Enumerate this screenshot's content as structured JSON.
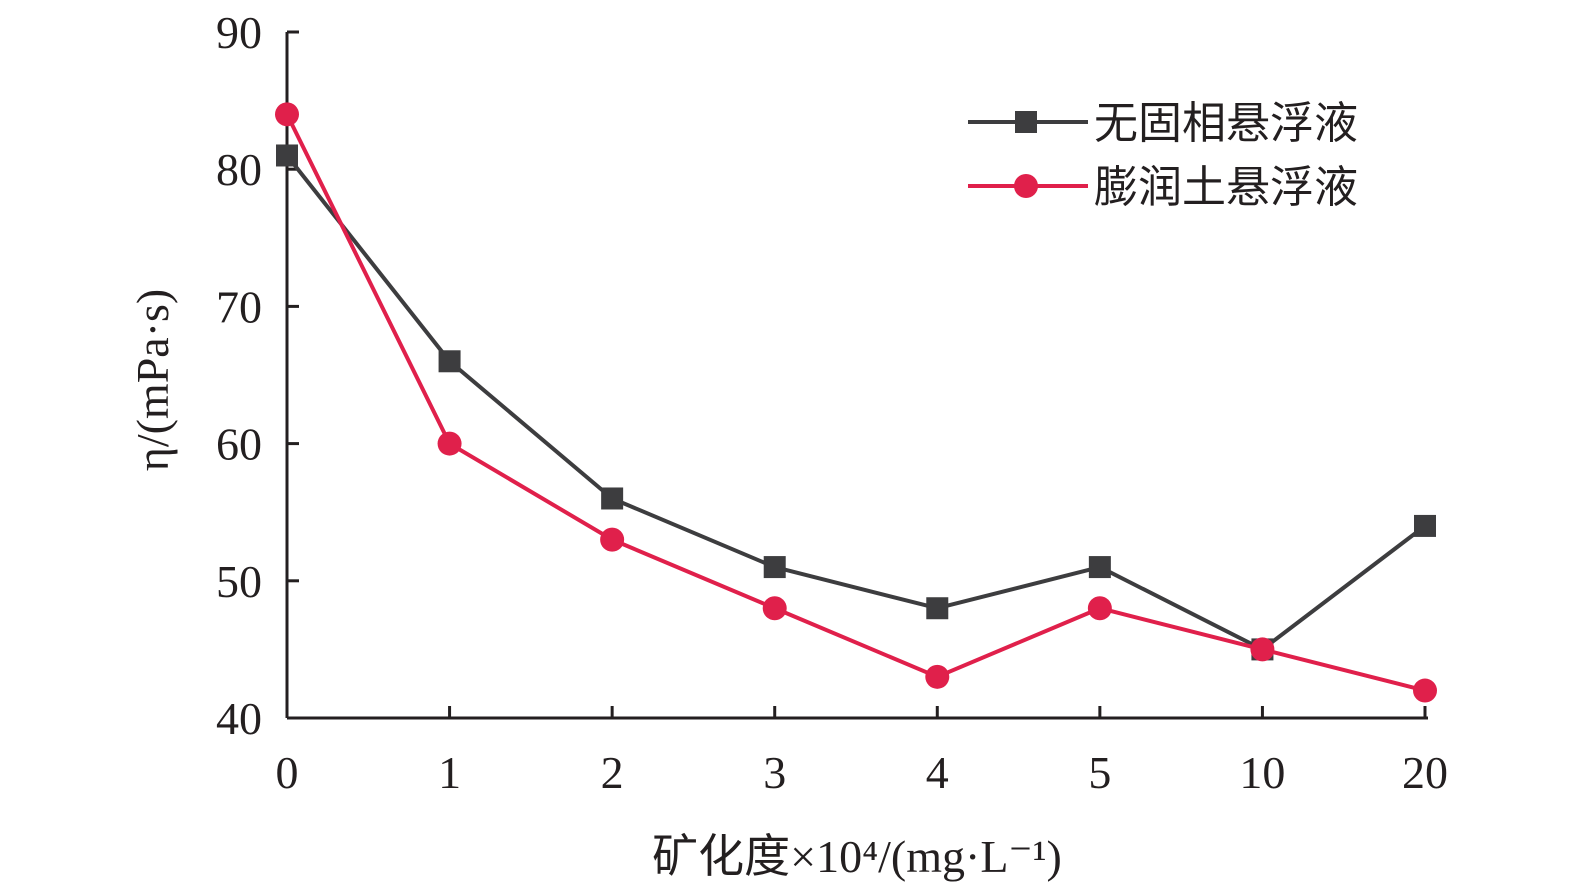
{
  "chart_data": {
    "type": "line",
    "categories": [
      "0",
      "1",
      "2",
      "3",
      "4",
      "5",
      "10",
      "20"
    ],
    "xlabel": "矿化度×10⁴/(mg·L⁻¹)",
    "ylabel": "η/(mPa·s)",
    "ylim": [
      40,
      90
    ],
    "yticks": [
      40,
      50,
      60,
      70,
      80,
      90
    ],
    "grid": false,
    "legend_position": "top-right",
    "series": [
      {
        "name": "无固相悬浮液",
        "values": [
          81,
          66,
          56,
          51,
          48,
          51,
          45,
          54
        ],
        "color": "#3d3d3f",
        "marker": "square"
      },
      {
        "name": "膨润土悬浮液",
        "values": [
          84,
          60,
          53,
          48,
          43,
          48,
          45,
          42
        ],
        "color": "#e0204b",
        "marker": "circle"
      }
    ]
  }
}
